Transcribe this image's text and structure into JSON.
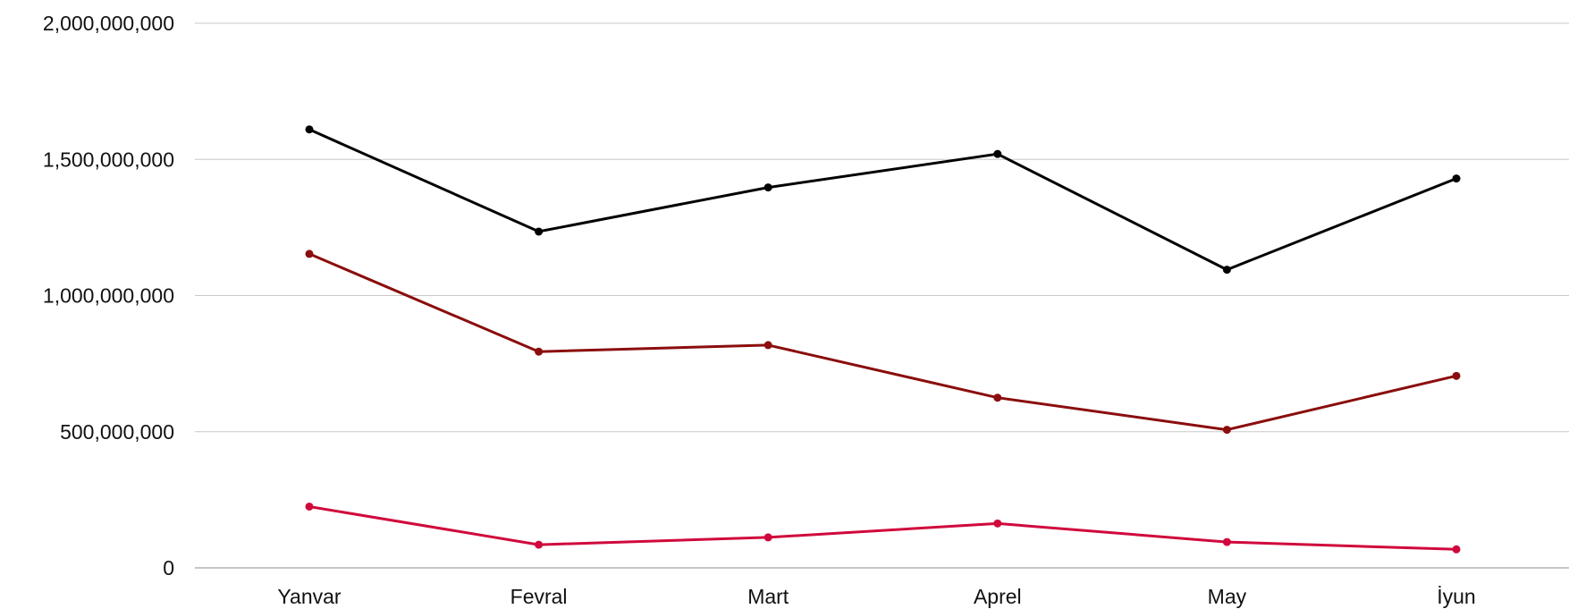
{
  "chart_data": {
    "type": "line",
    "title": "",
    "xlabel": "",
    "ylabel": "",
    "categories": [
      "Yanvar",
      "Fevral",
      "Mart",
      "Aprel",
      "May",
      "İyun"
    ],
    "ylim": [
      0,
      2000000000
    ],
    "yticks": [
      0,
      500000000,
      1000000000,
      1500000000,
      2000000000
    ],
    "ytick_labels": [
      "0",
      "500,000,000",
      "1,000,000,000",
      "1,500,000,000",
      "2,000,000,000"
    ],
    "grid": true,
    "legend": "none",
    "series": [
      {
        "color": "#000000",
        "values": [
          1610000000,
          1235000000,
          1397000000,
          1520000000,
          1095000000,
          1430000000
        ]
      },
      {
        "color": "#8b0d0d",
        "values": [
          1153000000,
          794000000,
          818000000,
          625000000,
          507000000,
          705000000
        ]
      },
      {
        "color": "#d0093c",
        "values": [
          225000000,
          85000000,
          112000000,
          163000000,
          95000000,
          68000000
        ]
      }
    ]
  }
}
